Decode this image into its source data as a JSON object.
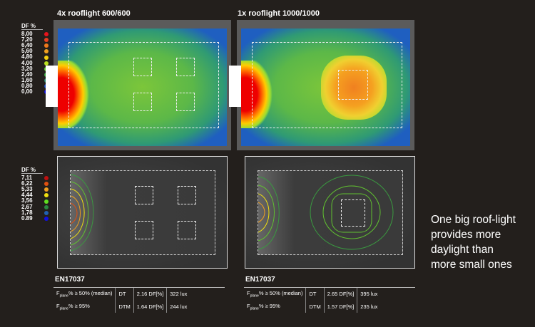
{
  "panels": [
    {
      "title": "4x rooflight 600/600",
      "standard": "EN17037",
      "rows": [
        {
          "criterion": "F",
          "sub": "plane",
          "cond": "% ≥ 50% (median)",
          "code": "DT",
          "df": "2.16 DF[%]",
          "lux": "322 lux"
        },
        {
          "criterion": "F",
          "sub": "plane",
          "cond": "% ≥ 95%",
          "code": "DTM",
          "df": "1.64 DF[%]",
          "lux": "244 lux"
        }
      ]
    },
    {
      "title": "1x rooflight 1000/1000",
      "standard": "EN17037",
      "rows": [
        {
          "criterion": "F",
          "sub": "plane",
          "cond": "% ≥ 50% (median)",
          "code": "DT",
          "df": "2.65 DF[%]",
          "lux": "395 lux"
        },
        {
          "criterion": "F",
          "sub": "plane",
          "cond": "% ≥ 95%",
          "code": "DTM",
          "df": "1.57 DF[%]",
          "lux": "235 lux"
        }
      ]
    }
  ],
  "legend_top": {
    "header": "DF %",
    "items": [
      {
        "v": "8,00",
        "c": "#e8141c"
      },
      {
        "v": "7,20",
        "c": "#e84020"
      },
      {
        "v": "6,40",
        "c": "#ee7a1c"
      },
      {
        "v": "5,60",
        "c": "#f0a020"
      },
      {
        "v": "4,80",
        "c": "#f5d010"
      },
      {
        "v": "4,00",
        "c": "#b8e020"
      },
      {
        "v": "3,20",
        "c": "#5cd030"
      },
      {
        "v": "2,40",
        "c": "#3aaa40"
      },
      {
        "v": "1,60",
        "c": "#2a8a70"
      },
      {
        "v": "0,80",
        "c": "#2050c0"
      },
      {
        "v": "0,00",
        "c": "#1010e0"
      }
    ]
  },
  "legend_bottom": {
    "header": "DF %",
    "items": [
      {
        "v": "7,11",
        "c": "#c01010"
      },
      {
        "v": "6,22",
        "c": "#e05010"
      },
      {
        "v": "5,33",
        "c": "#f0a020"
      },
      {
        "v": "4,44",
        "c": "#f0e010"
      },
      {
        "v": "3,56",
        "c": "#60e020"
      },
      {
        "v": "2,67",
        "c": "#2a8a40"
      },
      {
        "v": "1,78",
        "c": "#2060b0"
      },
      {
        "v": "0.89",
        "c": "#1010e0"
      }
    ]
  },
  "caption": "One big roof-light provides more daylight than more small ones"
}
